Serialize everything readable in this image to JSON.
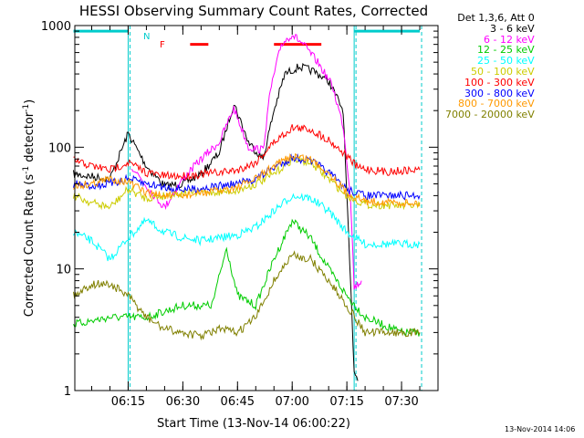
{
  "chart_data": {
    "type": "line",
    "title": "HESSI Observing Summary Count Rates, Corrected",
    "ylabel": "Corrected Count Rate (s",
    "ylabel_sup1": "-1",
    "ylabel_mid": " detector",
    "ylabel_sup2": "-1",
    "ylabel_end": ")",
    "xlabel": "Start Time (13-Nov-14 06:00:22)",
    "y_scale": "log",
    "ylim": [
      1,
      1000
    ],
    "xlim": [
      "06:00:22",
      "07:40:00"
    ],
    "x_ticks": [
      "06:15",
      "06:30",
      "06:45",
      "07:00",
      "07:15",
      "07:30"
    ],
    "y_ticks": [
      "1",
      "10",
      "100",
      "1000"
    ],
    "legend_title": "Det 1,3,6, Att 0",
    "legend_placement": "right",
    "annotations": {
      "night_marker": "N",
      "flare_marker": "F"
    },
    "timestamp": "13-Nov-2014 14:06",
    "series": [
      {
        "name": "3 - 6 keV",
        "color": "#000000",
        "points": [
          [
            "06:00",
            "60"
          ],
          [
            "06:10",
            "55"
          ],
          [
            "06:15",
            "130"
          ],
          [
            "06:20",
            "70"
          ],
          [
            "06:25",
            "48"
          ],
          [
            "06:30",
            "50"
          ],
          [
            "06:35",
            "60"
          ],
          [
            "06:40",
            "90"
          ],
          [
            "06:44",
            "230"
          ],
          [
            "06:48",
            "110"
          ],
          [
            "06:52",
            "80"
          ],
          [
            "06:55",
            "200"
          ],
          [
            "06:58",
            "400"
          ],
          [
            "07:02",
            "460"
          ],
          [
            "07:06",
            "420"
          ],
          [
            "07:10",
            "350"
          ],
          [
            "07:14",
            "200"
          ],
          [
            "07:17",
            "1.5"
          ],
          [
            "07:18",
            "1.2"
          ]
        ]
      },
      {
        "name": "6 - 12 keV",
        "color": "#ff00ff",
        "points": [
          [
            "06:16",
            "70"
          ],
          [
            "06:20",
            "48"
          ],
          [
            "06:25",
            "32"
          ],
          [
            "06:30",
            "55"
          ],
          [
            "06:35",
            "80"
          ],
          [
            "06:40",
            "110"
          ],
          [
            "06:44",
            "210"
          ],
          [
            "06:48",
            "100"
          ],
          [
            "06:52",
            "95"
          ],
          [
            "06:54",
            "290"
          ],
          [
            "06:57",
            "700"
          ],
          [
            "07:00",
            "850"
          ],
          [
            "07:03",
            "700"
          ],
          [
            "07:07",
            "500"
          ],
          [
            "07:11",
            "320"
          ],
          [
            "07:14",
            "150"
          ],
          [
            "07:16",
            "40"
          ],
          [
            "07:17",
            "7"
          ],
          [
            "07:19",
            "8"
          ]
        ]
      },
      {
        "name": "12 - 25 keV",
        "color": "#00cc00",
        "points": [
          [
            "06:00",
            "3.5"
          ],
          [
            "06:10",
            "4"
          ],
          [
            "06:15",
            "4"
          ],
          [
            "06:20",
            "4"
          ],
          [
            "06:30",
            "5"
          ],
          [
            "06:38",
            "5"
          ],
          [
            "06:42",
            "15"
          ],
          [
            "06:45",
            "6"
          ],
          [
            "06:50",
            "5"
          ],
          [
            "06:55",
            "12"
          ],
          [
            "07:00",
            "25"
          ],
          [
            "07:05",
            "18"
          ],
          [
            "07:10",
            "10"
          ],
          [
            "07:15",
            "6"
          ],
          [
            "07:20",
            "4"
          ],
          [
            "07:30",
            "3"
          ],
          [
            "07:35",
            "3"
          ]
        ]
      },
      {
        "name": "25 - 50 keV",
        "color": "#00ffff",
        "points": [
          [
            "06:00",
            "20"
          ],
          [
            "06:05",
            "17"
          ],
          [
            "06:10",
            "12"
          ],
          [
            "06:15",
            "18"
          ],
          [
            "06:20",
            "25"
          ],
          [
            "06:25",
            "20"
          ],
          [
            "06:30",
            "18"
          ],
          [
            "06:35",
            "17"
          ],
          [
            "06:40",
            "18"
          ],
          [
            "06:45",
            "19"
          ],
          [
            "06:50",
            "22"
          ],
          [
            "06:55",
            "30"
          ],
          [
            "07:00",
            "40"
          ],
          [
            "07:05",
            "38"
          ],
          [
            "07:10",
            "30"
          ],
          [
            "07:15",
            "20"
          ],
          [
            "07:20",
            "16"
          ],
          [
            "07:30",
            "16"
          ],
          [
            "07:35",
            "16"
          ]
        ]
      },
      {
        "name": "50 - 100 keV",
        "color": "#cccc00",
        "points": [
          [
            "06:00",
            "40"
          ],
          [
            "06:05",
            "35"
          ],
          [
            "06:10",
            "32"
          ],
          [
            "06:15",
            "45"
          ],
          [
            "06:20",
            "38"
          ],
          [
            "06:25",
            "40"
          ],
          [
            "06:30",
            "42"
          ],
          [
            "06:40",
            "43"
          ],
          [
            "06:45",
            "44"
          ],
          [
            "06:50",
            "50"
          ],
          [
            "06:55",
            "60"
          ],
          [
            "07:00",
            "80"
          ],
          [
            "07:05",
            "75"
          ],
          [
            "07:10",
            "55"
          ],
          [
            "07:15",
            "40"
          ],
          [
            "07:20",
            "34"
          ],
          [
            "07:30",
            "33"
          ],
          [
            "07:35",
            "33"
          ]
        ]
      },
      {
        "name": "100 - 300 keV",
        "color": "#ff0000",
        "points": [
          [
            "06:00",
            "78"
          ],
          [
            "06:05",
            "70"
          ],
          [
            "06:10",
            "65"
          ],
          [
            "06:15",
            "75"
          ],
          [
            "06:20",
            "62"
          ],
          [
            "06:25",
            "58"
          ],
          [
            "06:30",
            "58"
          ],
          [
            "06:35",
            "60"
          ],
          [
            "06:40",
            "62"
          ],
          [
            "06:45",
            "65"
          ],
          [
            "06:50",
            "75"
          ],
          [
            "06:55",
            "110"
          ],
          [
            "07:00",
            "145"
          ],
          [
            "07:05",
            "140"
          ],
          [
            "07:10",
            "115"
          ],
          [
            "07:15",
            "85"
          ],
          [
            "07:18",
            "68"
          ],
          [
            "07:25",
            "63"
          ],
          [
            "07:35",
            "65"
          ]
        ]
      },
      {
        "name": "300 - 800 keV",
        "color": "#0000ff",
        "points": [
          [
            "06:00",
            "50"
          ],
          [
            "06:05",
            "48"
          ],
          [
            "06:10",
            "50"
          ],
          [
            "06:15",
            "55"
          ],
          [
            "06:20",
            "50"
          ],
          [
            "06:25",
            "47"
          ],
          [
            "06:30",
            "45"
          ],
          [
            "06:35",
            "46"
          ],
          [
            "06:40",
            "48"
          ],
          [
            "06:45",
            "50"
          ],
          [
            "06:50",
            "55"
          ],
          [
            "06:55",
            "68"
          ],
          [
            "07:00",
            "82"
          ],
          [
            "07:05",
            "78"
          ],
          [
            "07:10",
            "62"
          ],
          [
            "07:15",
            "45"
          ],
          [
            "07:20",
            "40"
          ],
          [
            "07:30",
            "40"
          ],
          [
            "07:35",
            "40"
          ]
        ]
      },
      {
        "name": "800 - 7000 keV",
        "color": "#ff9900",
        "points": [
          [
            "06:00",
            "48"
          ],
          [
            "06:05",
            "50"
          ],
          [
            "06:10",
            "55"
          ],
          [
            "06:15",
            "52"
          ],
          [
            "06:20",
            "42"
          ],
          [
            "06:25",
            "40"
          ],
          [
            "06:30",
            "40"
          ],
          [
            "06:35",
            "42"
          ],
          [
            "06:40",
            "44"
          ],
          [
            "06:45",
            "47"
          ],
          [
            "06:50",
            "55"
          ],
          [
            "06:55",
            "70"
          ],
          [
            "07:00",
            "85"
          ],
          [
            "07:05",
            "80"
          ],
          [
            "07:10",
            "62"
          ],
          [
            "07:15",
            "42"
          ],
          [
            "07:20",
            "36"
          ],
          [
            "07:30",
            "35"
          ],
          [
            "07:35",
            "35"
          ]
        ]
      },
      {
        "name": "7000 - 20000 keV",
        "color": "#808000",
        "points": [
          [
            "06:00",
            "6"
          ],
          [
            "06:05",
            "7.5"
          ],
          [
            "06:10",
            "7.5"
          ],
          [
            "06:15",
            "6"
          ],
          [
            "06:20",
            "4"
          ],
          [
            "06:25",
            "3.2"
          ],
          [
            "06:30",
            "3"
          ],
          [
            "06:35",
            "2.8"
          ],
          [
            "06:40",
            "3.2"
          ],
          [
            "06:45",
            "3"
          ],
          [
            "06:50",
            "4"
          ],
          [
            "06:55",
            "8"
          ],
          [
            "07:00",
            "13"
          ],
          [
            "07:05",
            "12"
          ],
          [
            "07:10",
            "8"
          ],
          [
            "07:15",
            "5"
          ],
          [
            "07:20",
            "3"
          ],
          [
            "07:30",
            "3"
          ],
          [
            "07:35",
            "3"
          ]
        ]
      }
    ],
    "overlays": [
      {
        "name": "night",
        "color": "#00cccc",
        "level": "900",
        "spans": [
          [
            "06:00",
            "06:15"
          ],
          [
            "07:17",
            "07:35"
          ]
        ]
      },
      {
        "name": "flare",
        "color": "#ff0000",
        "level": "700",
        "spans": [
          [
            "06:32",
            "06:37"
          ],
          [
            "06:55",
            "07:08"
          ]
        ]
      }
    ],
    "boundaries": {
      "color": "#00cccc",
      "times": [
        "06:15",
        "07:17"
      ],
      "dashed_times": [
        "06:15",
        "07:17",
        "07:35"
      ]
    }
  }
}
